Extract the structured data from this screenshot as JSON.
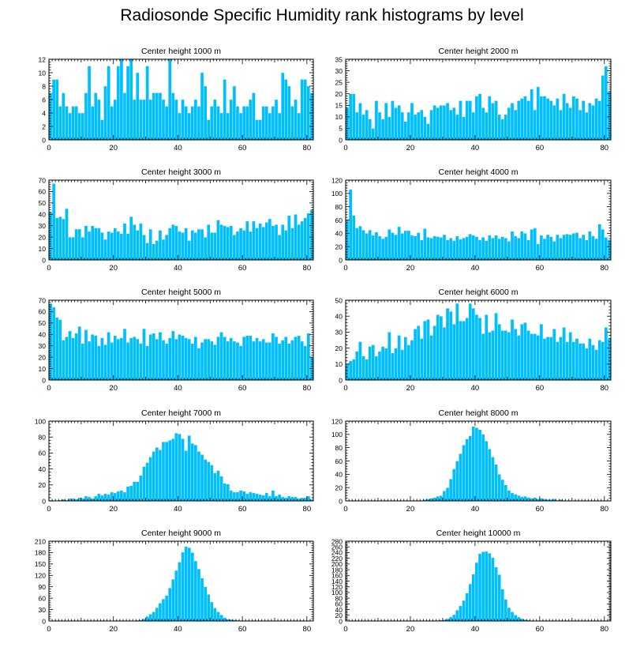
{
  "title": "Radiosonde Specific Humidity rank histograms by level",
  "bar_color": "#00bfff",
  "chart_data": [
    {
      "type": "bar",
      "title": "Center height 1000 m",
      "xlim": [
        0,
        82
      ],
      "ylim": [
        0,
        12
      ],
      "xticks": [
        0,
        20,
        40,
        60,
        80
      ],
      "yticks": [
        0,
        2,
        4,
        6,
        8,
        10,
        12
      ],
      "values": [
        7,
        9,
        9,
        5,
        7,
        5,
        4,
        5,
        5,
        4,
        4,
        7,
        11,
        5,
        7,
        6,
        3,
        8,
        11,
        5,
        6,
        11,
        12,
        7,
        11,
        12,
        6,
        10,
        6,
        6,
        11,
        6,
        7,
        7,
        7,
        6,
        5,
        12,
        7,
        6,
        4,
        6,
        5,
        4,
        5,
        6,
        5,
        10,
        8,
        3,
        5,
        6,
        5,
        4,
        9,
        4,
        6,
        8,
        5,
        4,
        5,
        5,
        6,
        7,
        3,
        3,
        5,
        5,
        4,
        5,
        6,
        4,
        10,
        9,
        8,
        5,
        6,
        4,
        9,
        9,
        8,
        7
      ]
    },
    {
      "type": "bar",
      "title": "Center height 2000 m",
      "xlim": [
        0,
        82
      ],
      "ylim": [
        0,
        35
      ],
      "xticks": [
        0,
        20,
        40,
        60,
        80
      ],
      "yticks": [
        0,
        5,
        10,
        15,
        20,
        25,
        30,
        35
      ],
      "values": [
        14,
        20,
        20,
        12,
        16,
        11,
        13,
        9,
        5,
        17,
        12,
        9,
        16,
        10,
        17,
        14,
        15,
        12,
        8,
        12,
        16,
        11,
        12,
        13,
        10,
        7,
        13,
        15,
        14,
        15,
        15,
        16,
        13,
        14,
        11,
        17,
        10,
        17,
        17,
        12,
        19,
        20,
        14,
        12,
        19,
        16,
        17,
        11,
        9,
        11,
        14,
        16,
        13,
        17,
        18,
        19,
        17,
        22,
        13,
        23,
        19,
        19,
        18,
        17,
        15,
        18,
        13,
        20,
        16,
        14,
        19,
        18,
        13,
        17,
        12,
        16,
        15,
        18,
        17,
        28,
        32,
        21
      ]
    },
    {
      "type": "bar",
      "title": "Center height 3000 m",
      "xlim": [
        0,
        82
      ],
      "ylim": [
        0,
        70
      ],
      "xticks": [
        0,
        20,
        40,
        60,
        80
      ],
      "yticks": [
        0,
        10,
        20,
        30,
        40,
        50,
        60,
        70
      ],
      "values": [
        42,
        67,
        37,
        38,
        36,
        45,
        20,
        20,
        27,
        27,
        20,
        30,
        25,
        30,
        28,
        28,
        24,
        18,
        25,
        24,
        28,
        25,
        23,
        32,
        23,
        38,
        31,
        26,
        32,
        22,
        15,
        27,
        14,
        17,
        26,
        18,
        22,
        28,
        31,
        30,
        25,
        24,
        28,
        17,
        26,
        24,
        27,
        27,
        20,
        31,
        24,
        24,
        35,
        31,
        30,
        29,
        30,
        22,
        25,
        28,
        26,
        34,
        25,
        34,
        28,
        32,
        29,
        33,
        36,
        30,
        31,
        22,
        31,
        26,
        39,
        28,
        40,
        31,
        34,
        37,
        41,
        44
      ]
    },
    {
      "type": "bar",
      "title": "Center height 4000 m",
      "xlim": [
        0,
        82
      ],
      "ylim": [
        0,
        120
      ],
      "xticks": [
        0,
        20,
        40,
        60,
        80
      ],
      "yticks": [
        0,
        20,
        40,
        60,
        80,
        100,
        120
      ],
      "values": [
        60,
        106,
        67,
        48,
        51,
        45,
        40,
        45,
        37,
        42,
        36,
        32,
        35,
        46,
        41,
        38,
        50,
        40,
        44,
        44,
        37,
        36,
        41,
        30,
        47,
        34,
        33,
        36,
        35,
        34,
        38,
        30,
        33,
        29,
        36,
        31,
        33,
        35,
        39,
        37,
        35,
        30,
        34,
        29,
        37,
        33,
        37,
        32,
        35,
        33,
        28,
        43,
        36,
        33,
        43,
        40,
        30,
        46,
        48,
        24,
        37,
        32,
        38,
        35,
        28,
        38,
        33,
        38,
        39,
        38,
        40,
        41,
        33,
        38,
        30,
        43,
        36,
        32,
        54,
        46,
        34,
        30
      ]
    },
    {
      "type": "bar",
      "title": "Center height 5000 m",
      "xlim": [
        0,
        82
      ],
      "ylim": [
        0,
        70
      ],
      "xticks": [
        0,
        20,
        40,
        60,
        80
      ],
      "yticks": [
        0,
        10,
        20,
        30,
        40,
        50,
        60,
        70
      ],
      "values": [
        67,
        64,
        55,
        53,
        35,
        38,
        43,
        37,
        41,
        47,
        32,
        44,
        34,
        40,
        39,
        30,
        37,
        31,
        42,
        33,
        39,
        36,
        37,
        45,
        33,
        37,
        38,
        36,
        32,
        45,
        30,
        40,
        41,
        36,
        42,
        35,
        32,
        37,
        43,
        36,
        40,
        39,
        37,
        36,
        32,
        38,
        28,
        33,
        36,
        36,
        34,
        31,
        38,
        42,
        38,
        34,
        37,
        34,
        33,
        30,
        38,
        39,
        39,
        34,
        37,
        34,
        36,
        33,
        33,
        41,
        38,
        32,
        35,
        38,
        32,
        35,
        38,
        39,
        34,
        30,
        41,
        20
      ]
    },
    {
      "type": "bar",
      "title": "Center height 6000 m",
      "xlim": [
        0,
        82
      ],
      "ylim": [
        0,
        50
      ],
      "xticks": [
        0,
        20,
        40,
        60,
        80
      ],
      "yticks": [
        0,
        10,
        20,
        30,
        40,
        50
      ],
      "values": [
        10,
        12,
        13,
        18,
        24,
        15,
        13,
        21,
        22,
        15,
        18,
        21,
        20,
        30,
        17,
        20,
        28,
        19,
        27,
        22,
        25,
        32,
        34,
        26,
        37,
        38,
        28,
        34,
        41,
        40,
        33,
        45,
        43,
        35,
        48,
        37,
        37,
        39,
        48,
        45,
        41,
        39,
        29,
        41,
        30,
        31,
        42,
        35,
        31,
        31,
        30,
        38,
        32,
        28,
        35,
        36,
        31,
        29,
        29,
        28,
        35,
        26,
        27,
        27,
        32,
        24,
        27,
        33,
        24,
        30,
        24,
        26,
        23,
        23,
        20,
        26,
        22,
        19,
        25,
        24,
        33,
        26
      ]
    },
    {
      "type": "bar",
      "title": "Center height 7000 m",
      "xlim": [
        0,
        82
      ],
      "ylim": [
        0,
        100
      ],
      "xticks": [
        0,
        20,
        40,
        60,
        80
      ],
      "yticks": [
        0,
        20,
        40,
        60,
        80,
        100
      ],
      "values": [
        1,
        0,
        0,
        1,
        2,
        1,
        3,
        3,
        2,
        4,
        3,
        6,
        5,
        3,
        6,
        9,
        7,
        9,
        8,
        11,
        10,
        12,
        13,
        11,
        18,
        19,
        24,
        24,
        32,
        43,
        48,
        55,
        62,
        67,
        64,
        74,
        74,
        76,
        78,
        85,
        84,
        78,
        63,
        82,
        72,
        70,
        62,
        58,
        52,
        49,
        45,
        35,
        38,
        31,
        22,
        21,
        13,
        11,
        11,
        13,
        12,
        9,
        11,
        10,
        9,
        8,
        7,
        10,
        6,
        13,
        6,
        8,
        5,
        4,
        6,
        5,
        5,
        3,
        4,
        4,
        6,
        2
      ]
    },
    {
      "type": "bar",
      "title": "Center height 8000 m",
      "xlim": [
        0,
        82
      ],
      "ylim": [
        0,
        120
      ],
      "xticks": [
        0,
        20,
        40,
        60,
        80
      ],
      "yticks": [
        0,
        20,
        40,
        60,
        80,
        100,
        120
      ],
      "values": [
        0,
        0,
        0,
        0,
        0,
        0,
        0,
        0,
        0,
        0,
        0,
        0,
        0,
        0,
        0,
        0,
        0,
        0,
        0,
        0,
        0,
        0,
        1,
        1,
        2,
        3,
        4,
        5,
        7,
        8,
        15,
        20,
        33,
        48,
        60,
        71,
        84,
        93,
        98,
        112,
        110,
        107,
        100,
        90,
        78,
        66,
        55,
        40,
        32,
        24,
        16,
        12,
        10,
        8,
        6,
        7,
        5,
        4,
        5,
        3,
        4,
        3,
        2,
        2,
        3,
        1,
        2,
        1,
        0,
        1,
        0,
        0,
        0,
        0,
        0,
        0,
        0,
        0,
        0,
        0,
        0,
        0
      ]
    },
    {
      "type": "bar",
      "title": "Center height 9000 m",
      "xlim": [
        0,
        82
      ],
      "ylim": [
        0,
        210
      ],
      "xticks": [
        0,
        20,
        40,
        60,
        80
      ],
      "yticks": [
        0,
        30,
        60,
        90,
        120,
        150,
        180,
        210
      ],
      "values": [
        0,
        0,
        0,
        0,
        0,
        0,
        0,
        0,
        0,
        0,
        0,
        0,
        0,
        0,
        0,
        0,
        0,
        0,
        0,
        0,
        0,
        0,
        0,
        0,
        0,
        0,
        1,
        2,
        3,
        6,
        12,
        18,
        24,
        35,
        47,
        58,
        67,
        87,
        110,
        133,
        155,
        181,
        196,
        193,
        180,
        158,
        137,
        113,
        90,
        70,
        50,
        34,
        24,
        16,
        9,
        5,
        4,
        3,
        2,
        1,
        1,
        0,
        0,
        0,
        0,
        0,
        0,
        0,
        0,
        0,
        0,
        0,
        0,
        0,
        0,
        0,
        0,
        0,
        0,
        0,
        0,
        0
      ]
    },
    {
      "type": "bar",
      "title": "Center height 10000 m",
      "xlim": [
        0,
        82
      ],
      "ylim": [
        0,
        280
      ],
      "xticks": [
        0,
        20,
        40,
        60,
        80
      ],
      "yticks": [
        0,
        20,
        40,
        60,
        80,
        100,
        120,
        140,
        160,
        180,
        200,
        220,
        240,
        260,
        280
      ],
      "ytick_labels": [
        "0",
        "20",
        "40",
        "60",
        "80",
        "100",
        "120",
        "140",
        "160",
        "180",
        "200",
        "220",
        "240",
        "260",
        "280"
      ],
      "values": [
        0,
        0,
        0,
        0,
        0,
        0,
        0,
        0,
        0,
        0,
        0,
        0,
        0,
        0,
        0,
        0,
        0,
        0,
        0,
        0,
        0,
        0,
        0,
        0,
        0,
        0,
        0,
        1,
        2,
        3,
        5,
        8,
        14,
        22,
        38,
        53,
        72,
        98,
        130,
        164,
        205,
        236,
        243,
        244,
        238,
        222,
        189,
        163,
        112,
        76,
        47,
        32,
        21,
        14,
        8,
        5,
        3,
        2,
        1,
        0,
        0,
        0,
        0,
        0,
        0,
        0,
        0,
        0,
        0,
        0,
        0,
        0,
        0,
        0,
        0,
        0,
        0,
        0,
        0,
        0,
        0,
        0
      ]
    }
  ]
}
